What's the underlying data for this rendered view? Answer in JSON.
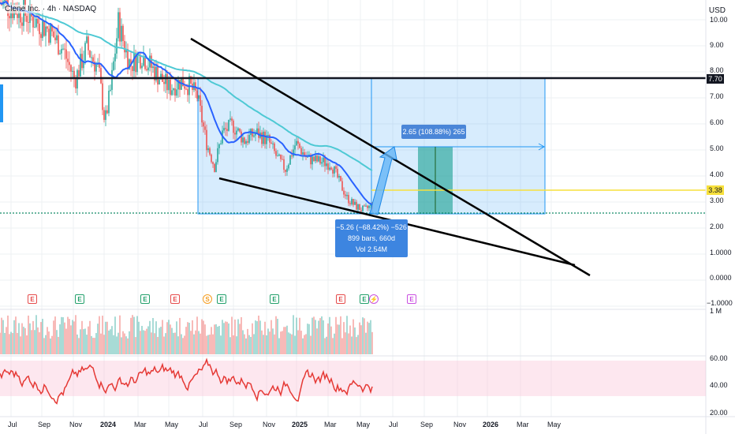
{
  "header": {
    "title": "Clene Inc. · 4h · NASDAQ",
    "currency": "USD"
  },
  "price_axis": {
    "labels": [
      "10.00",
      "9.00",
      "8.00",
      "7.00",
      "6.00",
      "5.00",
      "4.00",
      "3.00",
      "2.00",
      "1.0000",
      "0.0000",
      "−1.0000"
    ]
  },
  "price_tags": {
    "resistance": "7.70",
    "current": "3.38"
  },
  "volume_axis": {
    "label": "1 M"
  },
  "rsi_axis": {
    "labels": [
      "60.00",
      "40.00",
      "20.00"
    ]
  },
  "time_axis": {
    "labels": [
      "Jul",
      "Sep",
      "Nov",
      "2024",
      "Mar",
      "May",
      "Jul",
      "Sep",
      "Nov",
      "2025",
      "Mar",
      "May",
      "Jul",
      "Sep",
      "Nov",
      "2026",
      "Mar",
      "May"
    ],
    "bold": [
      "2024",
      "2025",
      "2026"
    ]
  },
  "measure_up": {
    "text": "2.65 (108.88%) 265"
  },
  "measure_down": {
    "line1": "−5.26 (−68.42%) −526",
    "line2": "899 bars, 660d",
    "line3": "Vol 2.54M"
  },
  "events": [
    {
      "label": "E",
      "kind": "red"
    },
    {
      "label": "E",
      "kind": "green"
    },
    {
      "label": "E",
      "kind": "green"
    },
    {
      "label": "E",
      "kind": "red"
    },
    {
      "label": "S",
      "kind": "orange"
    },
    {
      "label": "E",
      "kind": "green"
    },
    {
      "label": "E",
      "kind": "green"
    },
    {
      "label": "E",
      "kind": "red"
    },
    {
      "label": "E",
      "kind": "green"
    },
    {
      "label": "⚡",
      "kind": "pink"
    },
    {
      "label": "E",
      "kind": "pink"
    }
  ],
  "colors": {
    "up": "#26a69a",
    "down": "#ef5350",
    "ma_fast": "#2962ff",
    "ma_slow": "#4ec9d4",
    "rsi": "#e53935",
    "measure": "#2196f3"
  }
}
